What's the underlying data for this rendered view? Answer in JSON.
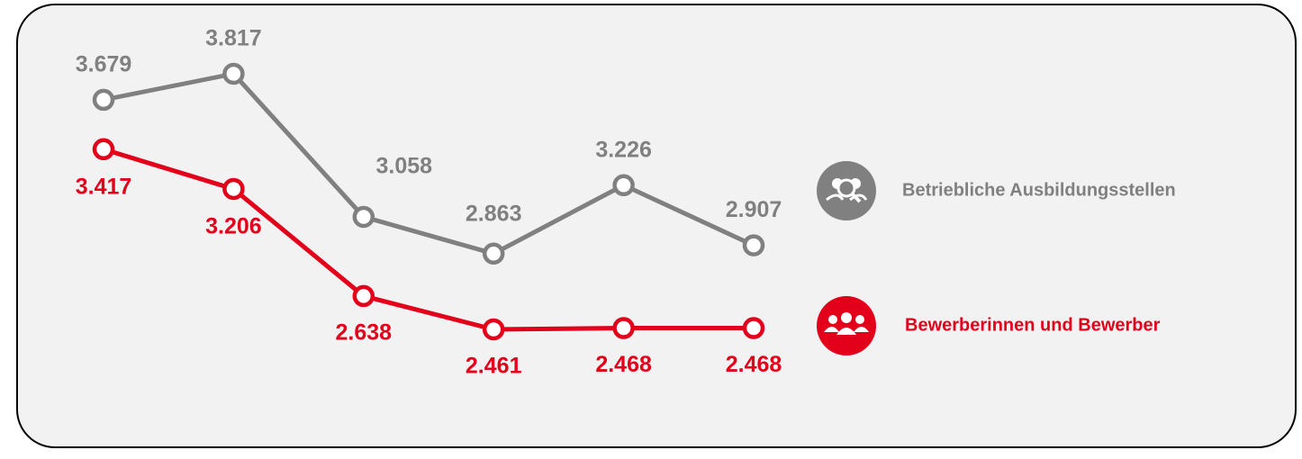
{
  "chart_data": {
    "type": "line",
    "categories": [
      null,
      null,
      null,
      null,
      null,
      null
    ],
    "series": [
      {
        "name": "Betriebliche Ausbildungsstellen",
        "color": "#808080",
        "values": [
          3679,
          3817,
          3058,
          2863,
          3226,
          2907
        ],
        "value_labels": [
          "3.679",
          "3.817",
          "3.058",
          "2.863",
          "3.226",
          "2.907"
        ]
      },
      {
        "name": "Bewerberinnen und Bewerber",
        "color": "#e2001a",
        "values": [
          3417,
          3206,
          2638,
          2461,
          2468,
          2468
        ],
        "value_labels": [
          "3.417",
          "3.206",
          "2.638",
          "2.461",
          "2.468",
          "2.468"
        ]
      }
    ]
  }
}
